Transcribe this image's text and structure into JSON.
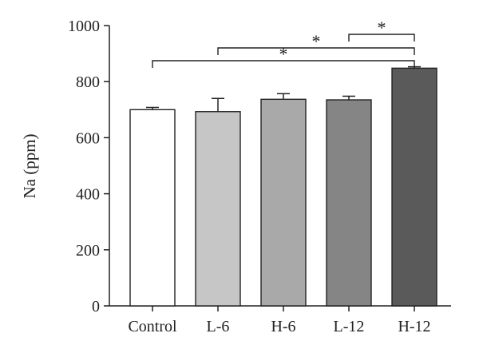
{
  "chart_data": {
    "type": "bar",
    "categories": [
      "Control",
      "L-6",
      "H-6",
      "L-12",
      "H-12"
    ],
    "values": [
      700,
      693,
      737,
      735,
      848
    ],
    "errors": [
      8,
      47,
      20,
      13,
      5
    ],
    "bar_colors": [
      "#ffffff",
      "#c6c6c6",
      "#a9a9a9",
      "#858585",
      "#5a5a5a"
    ],
    "ylabel": "Na (ppm)",
    "ylim": [
      0,
      1000
    ],
    "yticks": [
      "0",
      "200",
      "400",
      "600",
      "800",
      "1000"
    ],
    "grid": false,
    "significance": [
      {
        "from": 3,
        "to": 4,
        "label": "*"
      },
      {
        "from": 1,
        "to": 4,
        "label": "*"
      },
      {
        "from": 0,
        "to": 4,
        "label": "*"
      }
    ]
  }
}
